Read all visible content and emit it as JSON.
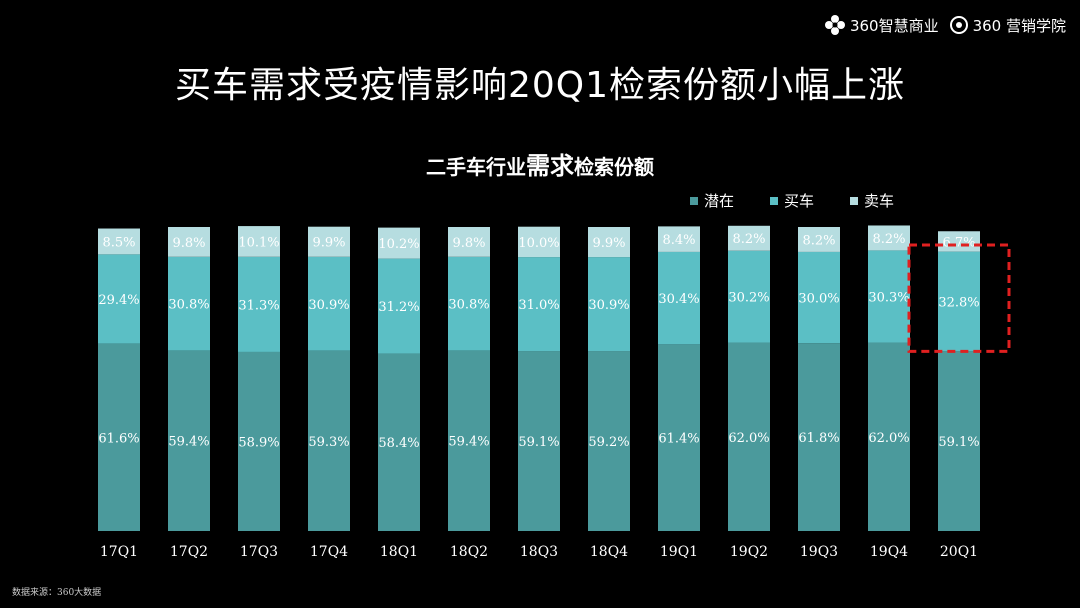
{
  "header": {
    "brand_left": "360智慧商业",
    "brand_right": "360 营销学院"
  },
  "title": "买车需求受疫情影响20Q1检索份额小幅上涨",
  "chart_title_parts": [
    "二手车行业",
    "需求",
    "检索份额"
  ],
  "source": "数据来源：360大数据",
  "colors": {
    "potential": "#4b9a9c",
    "buy": "#5bbfc5",
    "sell": "#b6dde0",
    "highlight": "#e02020"
  },
  "chart_data": {
    "type": "bar",
    "stacked": true,
    "percent": true,
    "categories": [
      "17Q1",
      "17Q2",
      "17Q3",
      "17Q4",
      "18Q1",
      "18Q2",
      "18Q3",
      "18Q4",
      "19Q1",
      "19Q2",
      "19Q3",
      "19Q4",
      "20Q1"
    ],
    "series": [
      {
        "name": "潜在",
        "values": [
          61.6,
          59.4,
          58.9,
          59.3,
          58.4,
          59.4,
          59.1,
          59.2,
          61.4,
          62.0,
          61.8,
          62.0,
          59.1
        ]
      },
      {
        "name": "买车",
        "values": [
          29.4,
          30.8,
          31.3,
          30.9,
          31.2,
          30.8,
          31.0,
          30.9,
          30.4,
          30.2,
          30.0,
          30.3,
          32.8
        ]
      },
      {
        "name": "卖车",
        "values": [
          8.5,
          9.8,
          10.1,
          9.9,
          10.2,
          9.8,
          10.0,
          9.9,
          8.4,
          8.2,
          8.2,
          8.2,
          6.7
        ]
      }
    ],
    "value_format": "percent_one_decimal",
    "highlight": {
      "category": "20Q1",
      "series": [
        "买车",
        "卖车"
      ],
      "style": "red-dashed-box"
    },
    "ylim": [
      0,
      100
    ],
    "legend_position": "top-right"
  }
}
